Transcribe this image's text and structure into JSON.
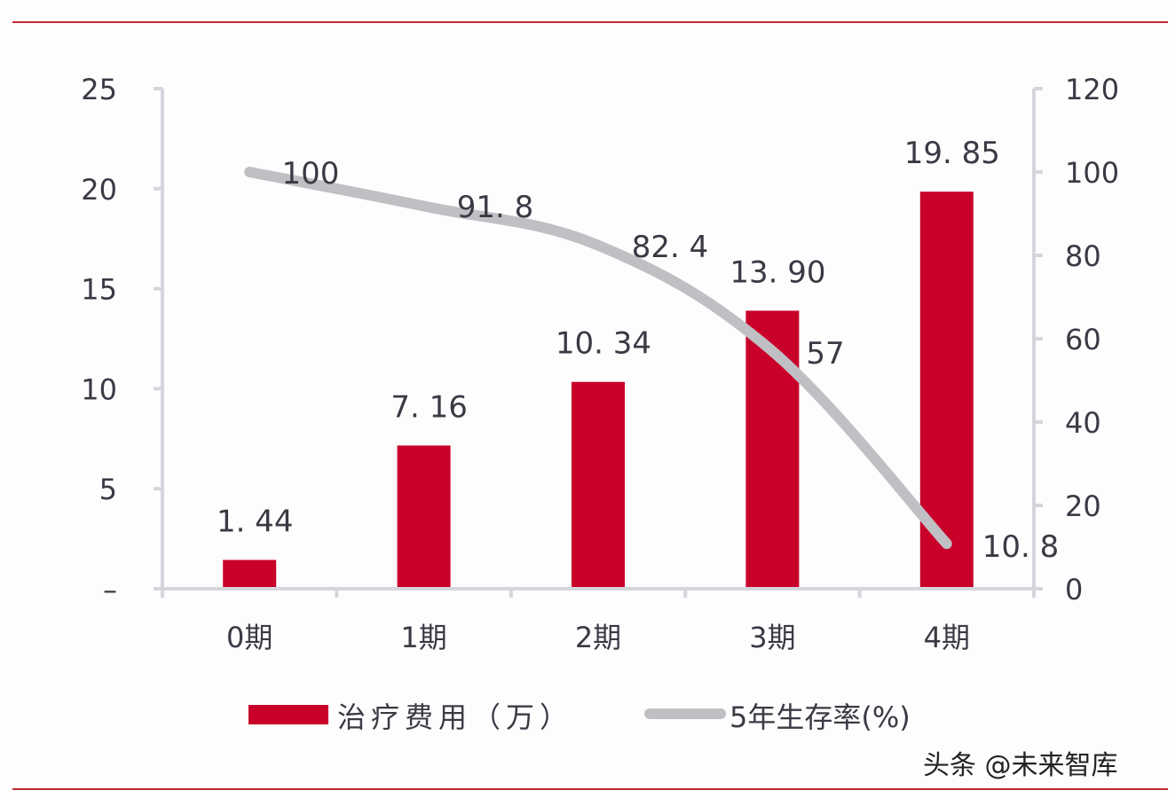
{
  "chart_data": {
    "type": "bar+line",
    "title": "",
    "categories": [
      "0期",
      "1期",
      "2期",
      "3期",
      "4期"
    ],
    "series": [
      {
        "name": "治疗费用（万）",
        "type": "bar",
        "axis": "left",
        "color": "#c8002a",
        "values": [
          1.44,
          7.16,
          10.34,
          13.9,
          19.85
        ],
        "labels": [
          "1. 44",
          "7. 16",
          "10. 34",
          "13. 90",
          "19. 85"
        ]
      },
      {
        "name": "5年生存率(%)",
        "type": "line",
        "axis": "right",
        "color": "#c0c0c4",
        "values": [
          100,
          91.8,
          82.4,
          57,
          10.8
        ],
        "labels": [
          "100",
          "91. 8",
          "82. 4",
          "57",
          "10. 8"
        ]
      }
    ],
    "y_left": {
      "ylim": [
        0,
        25
      ],
      "ticks": [
        "–",
        "5",
        "10",
        "15",
        "20",
        "25"
      ]
    },
    "y_right": {
      "ylim": [
        0,
        120
      ],
      "ticks": [
        "0",
        "20",
        "40",
        "60",
        "80",
        "100",
        "120"
      ]
    },
    "grid": false,
    "legend_position": "bottom"
  },
  "legend": {
    "bar_label": "治疗费用（万）",
    "line_label": "5年生存率(%)"
  },
  "watermark": "头条 @未来智库"
}
